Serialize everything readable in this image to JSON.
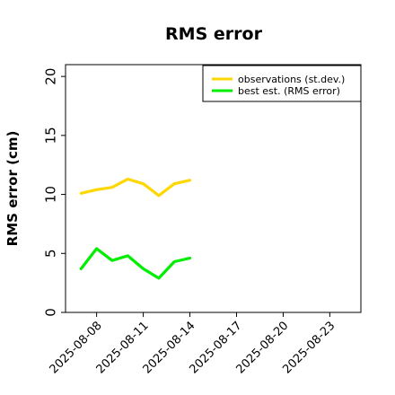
{
  "chart_data": {
    "type": "line",
    "title": "RMS error",
    "xlabel": "",
    "ylabel": "RMS error (cm)",
    "ylim": [
      0,
      21
    ],
    "yticks": [
      0,
      5,
      10,
      15,
      20
    ],
    "xlim": [
      "2025-08-06",
      "2025-08-25"
    ],
    "xticks": [
      "2025-08-08",
      "2025-08-11",
      "2025-08-14",
      "2025-08-17",
      "2025-08-20",
      "2025-08-23"
    ],
    "xtick_colors": [
      "#000000",
      "#000000",
      "#228b22",
      "#000000",
      "#000000",
      "#000000"
    ],
    "x": [
      "2025-08-07",
      "2025-08-08",
      "2025-08-09",
      "2025-08-10",
      "2025-08-11",
      "2025-08-12",
      "2025-08-13",
      "2025-08-14"
    ],
    "series": [
      {
        "name": "observations (st.dev.)",
        "color": "#ffd700",
        "values": [
          10.1,
          10.4,
          10.6,
          11.3,
          10.9,
          9.9,
          10.9,
          11.2
        ]
      },
      {
        "name": "best est. (RMS error)",
        "color": "#00ee00",
        "values": [
          3.7,
          5.4,
          4.4,
          4.8,
          3.7,
          2.9,
          4.3,
          4.6
        ]
      }
    ],
    "grid": false,
    "legend_position": "top-right"
  }
}
